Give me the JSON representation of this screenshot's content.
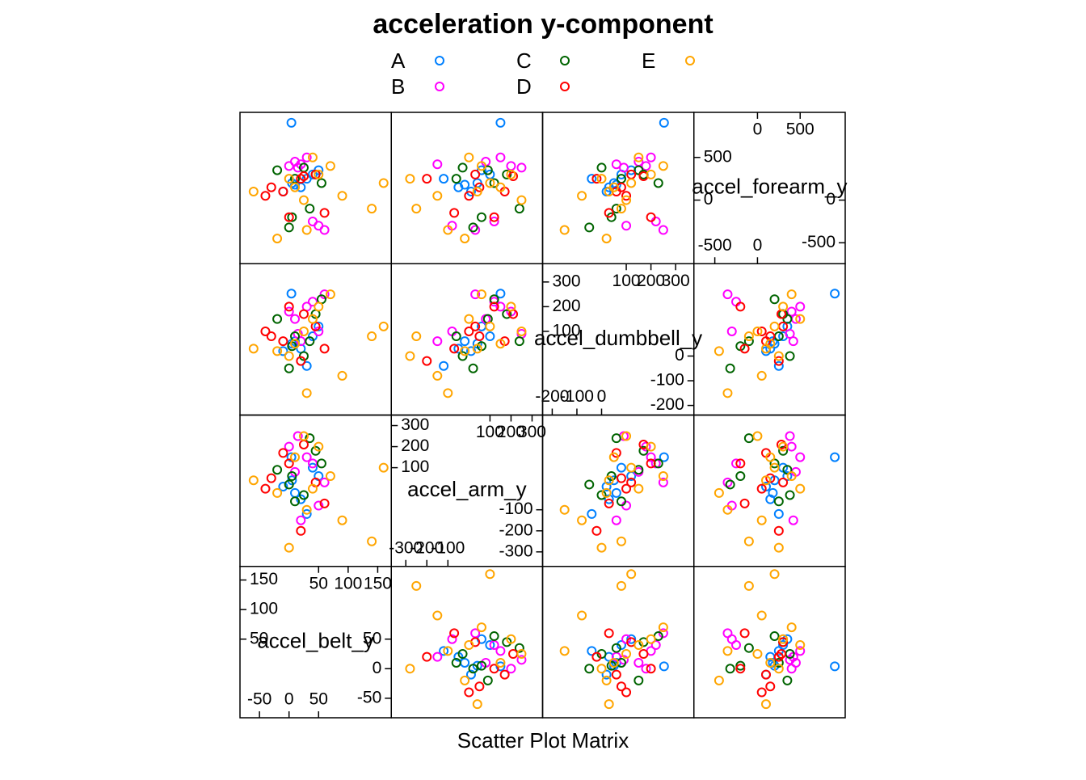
{
  "chart_data": {
    "type": "splom",
    "title": "acceleration y-component",
    "xlabel": "Scatter Plot Matrix",
    "variables": [
      {
        "name": "accel_belt_y",
        "lim": [
          -83,
          173
        ],
        "upper_ticks": [
          50,
          100,
          150
        ],
        "lower_ticks": [
          -50,
          0,
          50
        ]
      },
      {
        "name": "accel_arm_y",
        "lim": [
          -369,
          350
        ],
        "upper_ticks": [
          100,
          200,
          300
        ],
        "lower_ticks": [
          -300,
          -200,
          -100
        ]
      },
      {
        "name": "accel_dumbbell_y",
        "lim": [
          -239,
          374
        ],
        "upper_ticks": [
          100,
          200,
          300
        ],
        "lower_ticks": [
          -200,
          -100,
          0
        ]
      },
      {
        "name": "accel_forearm_y",
        "lim": [
          -745,
          1028
        ],
        "upper_ticks": [
          0,
          500
        ],
        "lower_ticks": [
          -500,
          0
        ]
      }
    ],
    "series": [
      {
        "name": "A",
        "color": "#0080ff",
        "values": [
          [
            5,
            40,
            50,
            200
          ],
          [
            20,
            -50,
            30,
            150
          ],
          [
            40,
            100,
            80,
            300
          ],
          [
            -10,
            10,
            20,
            100
          ],
          [
            30,
            -120,
            -40,
            250
          ],
          [
            50,
            60,
            120,
            350
          ],
          [
            10,
            -20,
            60,
            180
          ],
          [
            4,
            150,
            253,
            906
          ]
        ]
      },
      {
        "name": "B",
        "color": "#ff00ff",
        "values": [
          [
            10,
            80,
            150,
            450
          ],
          [
            30,
            150,
            200,
            500
          ],
          [
            50,
            -80,
            100,
            -300
          ],
          [
            0,
            200,
            180,
            400
          ],
          [
            60,
            30,
            250,
            -350
          ],
          [
            20,
            -150,
            60,
            420
          ],
          [
            40,
            120,
            220,
            -250
          ],
          [
            15,
            250,
            90,
            380
          ]
        ]
      },
      {
        "name": "C",
        "color": "#006400",
        "values": [
          [
            5,
            60,
            40,
            -200
          ],
          [
            25,
            -30,
            0,
            380
          ],
          [
            45,
            180,
            170,
            300
          ],
          [
            -20,
            90,
            150,
            350
          ],
          [
            35,
            240,
            60,
            -100
          ],
          [
            10,
            -60,
            80,
            250
          ],
          [
            55,
            120,
            230,
            200
          ],
          [
            0,
            20,
            -50,
            -320
          ]
        ]
      },
      {
        "name": "D",
        "color": "#ff0000",
        "values": [
          [
            -30,
            50,
            80,
            150
          ],
          [
            0,
            120,
            200,
            -200
          ],
          [
            20,
            -200,
            -20,
            250
          ],
          [
            45,
            30,
            120,
            300
          ],
          [
            -10,
            170,
            60,
            100
          ],
          [
            60,
            -70,
            30,
            -150
          ],
          [
            25,
            210,
            170,
            280
          ],
          [
            -40,
            0,
            100,
            50
          ]
        ]
      },
      {
        "name": "E",
        "color": "#ffa500",
        "values": [
          [
            -60,
            40,
            30,
            100
          ],
          [
            160,
            100,
            120,
            200
          ],
          [
            140,
            -250,
            80,
            -100
          ],
          [
            10,
            150,
            50,
            150
          ],
          [
            30,
            -100,
            -150,
            -350
          ],
          [
            50,
            200,
            200,
            300
          ],
          [
            -20,
            -20,
            20,
            -450
          ],
          [
            70,
            60,
            250,
            400
          ],
          [
            0,
            -280,
            0,
            250
          ],
          [
            25,
            250,
            100,
            0
          ],
          [
            90,
            -150,
            -80,
            50
          ],
          [
            40,
            0,
            150,
            500
          ]
        ]
      }
    ]
  }
}
